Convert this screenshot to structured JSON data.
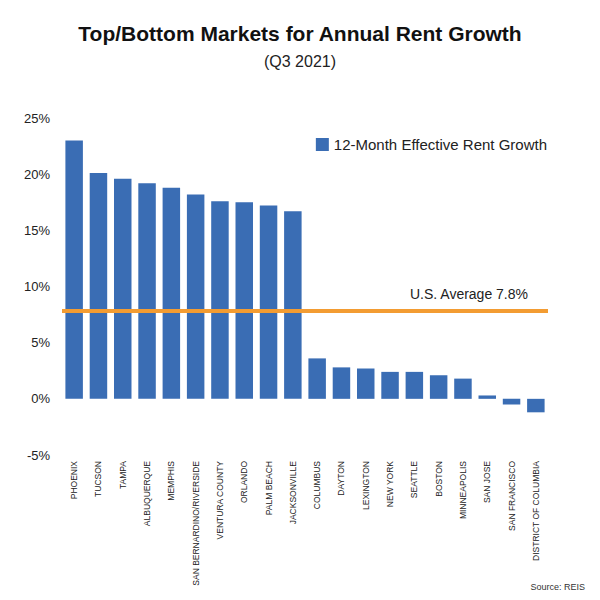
{
  "chart_data": {
    "type": "bar",
    "title": "Top/Bottom Markets for Annual Rent Growth",
    "subtitle": "(Q3 2021)",
    "categories": [
      "PHOENIX",
      "TUCSON",
      "TAMPA",
      "ALBUQUERQUE",
      "MEMPHIS",
      "SAN BERNARDINO/RIVERSIDE",
      "VENTURA COUNTY",
      "ORLANDO",
      "PALM BEACH",
      "JACKSONVILLE",
      "COLUMBUS",
      "DAYTON",
      "LEXINGTON",
      "NEW YORK",
      "SEATTLE",
      "BOSTON",
      "MINNEAPOLIS",
      "SAN JOSE",
      "SAN FRANCISCO",
      "DISTRICT OF COLUMBIA"
    ],
    "series": [
      {
        "name": "12-Month Effective Rent Growth",
        "color": "#3a6db4",
        "values": [
          23.0,
          20.1,
          19.6,
          19.2,
          18.8,
          18.2,
          17.6,
          17.5,
          17.2,
          16.7,
          3.6,
          2.8,
          2.7,
          2.4,
          2.4,
          2.1,
          1.8,
          0.3,
          -0.5,
          -1.2
        ]
      }
    ],
    "reference_line": {
      "value": 7.8,
      "label": "U.S. Average 7.8%",
      "color": "#f39c32"
    },
    "ylim": [
      -5,
      25
    ],
    "yticks": [
      {
        "value": -5,
        "label": "-5%"
      },
      {
        "value": 0,
        "label": "0%"
      },
      {
        "value": 5,
        "label": "5%"
      },
      {
        "value": 10,
        "label": "10%"
      },
      {
        "value": 15,
        "label": "15%"
      },
      {
        "value": 20,
        "label": "20%"
      },
      {
        "value": 25,
        "label": "25%"
      }
    ],
    "grid": false,
    "legend": "upper right",
    "source": "Source: REIS"
  }
}
